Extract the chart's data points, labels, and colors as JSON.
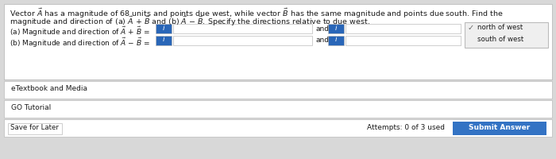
{
  "bg_color": "#d8d8d8",
  "white": "#ffffff",
  "light_gray": "#e8e8e8",
  "border_gray": "#bbbbbb",
  "blue_btn": "#2966b8",
  "submit_blue": "#3373c4",
  "text_dark": "#1a1a1a",
  "text_medium": "#333333",
  "dropdown_bg": "#efefef",
  "check_gray": "#666666",
  "title1": "Vector $\\vec{A}$ has a magnitude of 68 units and points due west, while vector $\\vec{B}$ has the same magnitude and points due south. Find the",
  "title2": "magnitude and direction of (a) $\\vec{A}$ + $\\vec{B}$ and (b) $\\vec{A}$ − $\\vec{B}$. Specify the directions relative to due west.",
  "label_a": "(a) Magnitude and direction of $\\vec{A}$ + $\\vec{B}$ =",
  "label_b": "(b) Magnitude and direction of $\\vec{A}$ − $\\vec{B}$ =",
  "and_label": "and",
  "drop_opt1": "north of west",
  "drop_opt2": "south of west",
  "etextbook": "eTextbook and Media",
  "go_tutorial": "GO Tutorial",
  "save_later": "Save for Later",
  "attempts": "Attempts: 0 of 3 used",
  "submit": "Submit Answer",
  "fs_title": 6.8,
  "fs_body": 6.5,
  "fs_small": 6.2,
  "fs_btn": 6.5
}
